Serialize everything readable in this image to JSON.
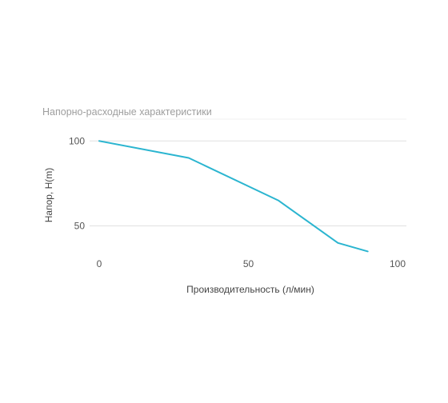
{
  "chart_data": {
    "type": "line",
    "title": "Напорно-расходные характеристики",
    "xlabel": "Производительность (л/мин)",
    "ylabel": "Напор, H(m)",
    "xlim": [
      0,
      100
    ],
    "ylim": [
      30,
      110
    ],
    "x_ticks": [
      0,
      50,
      100
    ],
    "y_ticks": [
      50,
      100
    ],
    "grid": true,
    "series": [
      {
        "color": "#2bb5d0",
        "x": [
          0,
          30,
          60,
          80,
          90
        ],
        "y": [
          100,
          90,
          65,
          40,
          35
        ]
      }
    ]
  }
}
